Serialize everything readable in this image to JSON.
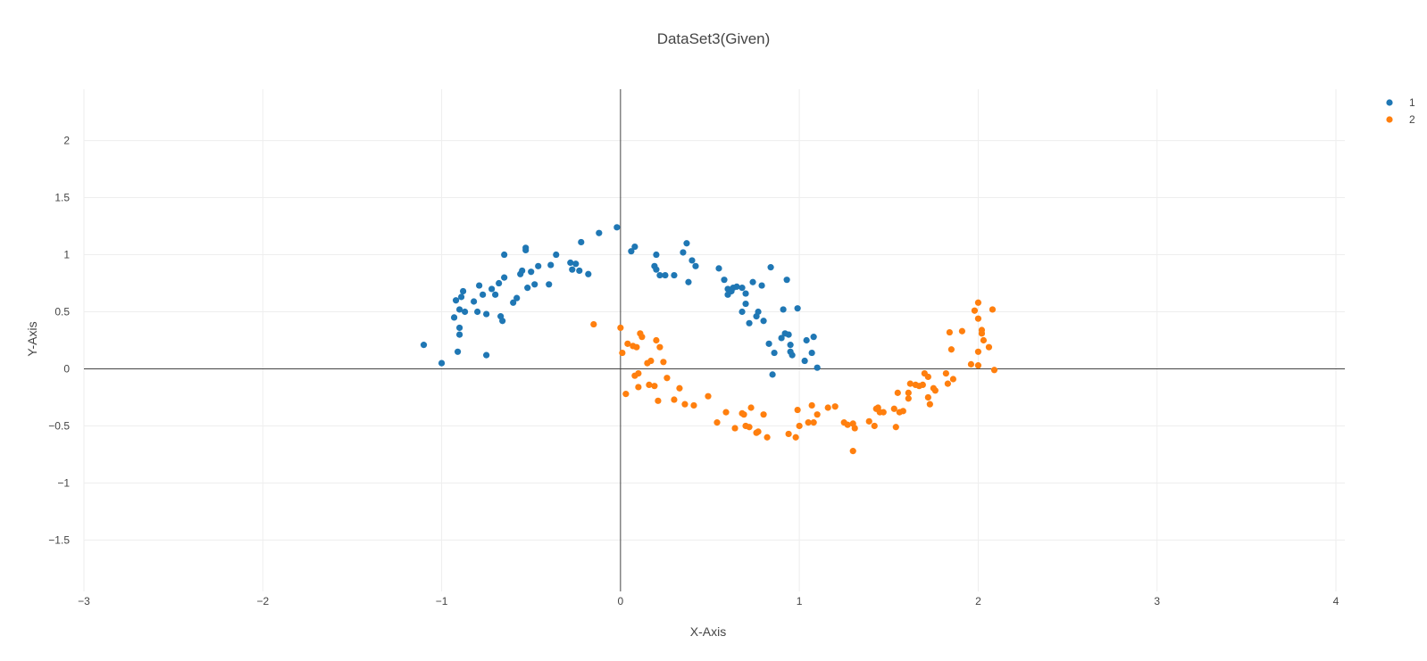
{
  "chart_data": {
    "type": "scatter",
    "title": "DataSet3(Given)",
    "xlabel": "X-Axis",
    "ylabel": "Y-Axis",
    "xlim": [
      -3,
      4.05
    ],
    "ylim": [
      -1.95,
      2.45
    ],
    "xticks": [
      -3,
      -2,
      -1,
      0,
      1,
      2,
      3,
      4
    ],
    "yticks": [
      -1.5,
      -1,
      -0.5,
      0,
      0.5,
      1,
      1.5,
      2
    ],
    "xtick_labels": [
      "−3",
      "−2",
      "−1",
      "0",
      "1",
      "2",
      "3",
      "4"
    ],
    "ytick_labels": [
      "−1.5",
      "−1",
      "−0.5",
      "0",
      "0.5",
      "1",
      "1.5",
      "2"
    ],
    "grid": true,
    "legend": "top-right",
    "series": [
      {
        "name": "1",
        "color": "#1f77b4",
        "points": [
          [
            -1.1,
            0.21
          ],
          [
            -1.0,
            0.05
          ],
          [
            -0.92,
            0.6
          ],
          [
            -0.91,
            0.15
          ],
          [
            -0.9,
            0.3
          ],
          [
            -0.9,
            0.36
          ],
          [
            -0.89,
            0.63
          ],
          [
            -0.88,
            0.68
          ],
          [
            -0.87,
            0.5
          ],
          [
            -0.93,
            0.45
          ],
          [
            -0.9,
            0.52
          ],
          [
            -0.82,
            0.59
          ],
          [
            -0.8,
            0.5
          ],
          [
            -0.79,
            0.73
          ],
          [
            -0.77,
            0.65
          ],
          [
            -0.75,
            0.12
          ],
          [
            -0.75,
            0.48
          ],
          [
            -0.72,
            0.7
          ],
          [
            -0.7,
            0.65
          ],
          [
            -0.68,
            0.75
          ],
          [
            -0.67,
            0.46
          ],
          [
            -0.66,
            0.42
          ],
          [
            -0.65,
            1.0
          ],
          [
            -0.65,
            0.8
          ],
          [
            -0.6,
            0.58
          ],
          [
            -0.58,
            0.62
          ],
          [
            -0.56,
            0.83
          ],
          [
            -0.55,
            0.86
          ],
          [
            -0.53,
            1.04
          ],
          [
            -0.53,
            1.06
          ],
          [
            -0.52,
            0.71
          ],
          [
            -0.5,
            0.85
          ],
          [
            -0.48,
            0.74
          ],
          [
            -0.46,
            0.9
          ],
          [
            -0.4,
            0.74
          ],
          [
            -0.39,
            0.91
          ],
          [
            -0.36,
            1.0
          ],
          [
            -0.28,
            0.93
          ],
          [
            -0.27,
            0.87
          ],
          [
            -0.25,
            0.92
          ],
          [
            -0.23,
            0.86
          ],
          [
            -0.22,
            1.11
          ],
          [
            -0.18,
            0.83
          ],
          [
            -0.12,
            1.19
          ],
          [
            -0.02,
            1.24
          ],
          [
            0.06,
            1.03
          ],
          [
            0.08,
            1.07
          ],
          [
            0.19,
            0.9
          ],
          [
            0.2,
            0.87
          ],
          [
            0.2,
            1.0
          ],
          [
            0.22,
            0.82
          ],
          [
            0.25,
            0.82
          ],
          [
            0.3,
            0.82
          ],
          [
            0.35,
            1.02
          ],
          [
            0.37,
            1.1
          ],
          [
            0.38,
            0.76
          ],
          [
            0.4,
            0.95
          ],
          [
            0.42,
            0.9
          ],
          [
            0.55,
            0.88
          ],
          [
            0.58,
            0.78
          ],
          [
            0.6,
            0.7
          ],
          [
            0.6,
            0.65
          ],
          [
            0.62,
            0.68
          ],
          [
            0.63,
            0.71
          ],
          [
            0.65,
            0.72
          ],
          [
            0.68,
            0.5
          ],
          [
            0.68,
            0.71
          ],
          [
            0.7,
            0.66
          ],
          [
            0.7,
            0.57
          ],
          [
            0.72,
            0.4
          ],
          [
            0.74,
            0.76
          ],
          [
            0.76,
            0.46
          ],
          [
            0.77,
            0.5
          ],
          [
            0.79,
            0.73
          ],
          [
            0.8,
            0.42
          ],
          [
            0.84,
            0.89
          ],
          [
            0.83,
            0.22
          ],
          [
            0.85,
            -0.05
          ],
          [
            0.86,
            0.14
          ],
          [
            0.9,
            0.27
          ],
          [
            0.91,
            0.52
          ],
          [
            0.92,
            0.31
          ],
          [
            0.93,
            0.78
          ],
          [
            0.94,
            0.3
          ],
          [
            0.95,
            0.15
          ],
          [
            0.95,
            0.21
          ],
          [
            0.96,
            0.12
          ],
          [
            0.99,
            0.53
          ],
          [
            1.03,
            0.07
          ],
          [
            1.04,
            0.25
          ],
          [
            1.07,
            0.14
          ],
          [
            1.08,
            0.28
          ],
          [
            1.1,
            0.01
          ]
        ]
      },
      {
        "name": "2",
        "color": "#ff7f0e",
        "points": [
          [
            -0.15,
            0.39
          ],
          [
            0.0,
            0.36
          ],
          [
            0.01,
            0.14
          ],
          [
            0.03,
            -0.22
          ],
          [
            0.04,
            0.22
          ],
          [
            0.07,
            0.2
          ],
          [
            0.08,
            -0.06
          ],
          [
            0.09,
            0.19
          ],
          [
            0.1,
            -0.04
          ],
          [
            0.1,
            -0.16
          ],
          [
            0.11,
            0.31
          ],
          [
            0.12,
            0.28
          ],
          [
            0.15,
            0.05
          ],
          [
            0.16,
            -0.14
          ],
          [
            0.17,
            0.07
          ],
          [
            0.19,
            -0.15
          ],
          [
            0.2,
            0.25
          ],
          [
            0.21,
            -0.28
          ],
          [
            0.22,
            0.19
          ],
          [
            0.24,
            0.06
          ],
          [
            0.26,
            -0.08
          ],
          [
            0.3,
            -0.27
          ],
          [
            0.33,
            -0.17
          ],
          [
            0.36,
            -0.31
          ],
          [
            0.41,
            -0.32
          ],
          [
            0.49,
            -0.24
          ],
          [
            0.54,
            -0.47
          ],
          [
            0.59,
            -0.38
          ],
          [
            0.64,
            -0.52
          ],
          [
            0.68,
            -0.39
          ],
          [
            0.69,
            -0.4
          ],
          [
            0.7,
            -0.5
          ],
          [
            0.72,
            -0.51
          ],
          [
            0.73,
            -0.34
          ],
          [
            0.76,
            -0.56
          ],
          [
            0.77,
            -0.55
          ],
          [
            0.8,
            -0.4
          ],
          [
            0.82,
            -0.6
          ],
          [
            0.94,
            -0.57
          ],
          [
            0.98,
            -0.6
          ],
          [
            0.99,
            -0.36
          ],
          [
            1.0,
            -0.5
          ],
          [
            1.05,
            -0.47
          ],
          [
            1.07,
            -0.32
          ],
          [
            1.08,
            -0.47
          ],
          [
            1.1,
            -0.4
          ],
          [
            1.16,
            -0.34
          ],
          [
            1.2,
            -0.33
          ],
          [
            1.25,
            -0.47
          ],
          [
            1.27,
            -0.49
          ],
          [
            1.3,
            -0.48
          ],
          [
            1.31,
            -0.52
          ],
          [
            1.3,
            -0.72
          ],
          [
            1.39,
            -0.46
          ],
          [
            1.42,
            -0.5
          ],
          [
            1.43,
            -0.35
          ],
          [
            1.44,
            -0.34
          ],
          [
            1.45,
            -0.38
          ],
          [
            1.47,
            -0.38
          ],
          [
            1.53,
            -0.35
          ],
          [
            1.54,
            -0.51
          ],
          [
            1.55,
            -0.21
          ],
          [
            1.56,
            -0.38
          ],
          [
            1.58,
            -0.37
          ],
          [
            1.61,
            -0.26
          ],
          [
            1.61,
            -0.21
          ],
          [
            1.62,
            -0.13
          ],
          [
            1.65,
            -0.14
          ],
          [
            1.67,
            -0.15
          ],
          [
            1.69,
            -0.14
          ],
          [
            1.7,
            -0.04
          ],
          [
            1.72,
            -0.25
          ],
          [
            1.72,
            -0.07
          ],
          [
            1.73,
            -0.31
          ],
          [
            1.75,
            -0.17
          ],
          [
            1.76,
            -0.19
          ],
          [
            1.82,
            -0.04
          ],
          [
            1.83,
            -0.13
          ],
          [
            1.84,
            0.32
          ],
          [
            1.85,
            0.17
          ],
          [
            1.86,
            -0.09
          ],
          [
            1.91,
            0.33
          ],
          [
            1.96,
            0.04
          ],
          [
            1.98,
            0.51
          ],
          [
            2.0,
            0.58
          ],
          [
            2.0,
            0.44
          ],
          [
            2.0,
            0.15
          ],
          [
            2.0,
            0.03
          ],
          [
            2.02,
            0.34
          ],
          [
            2.02,
            0.31
          ],
          [
            2.03,
            0.25
          ],
          [
            2.06,
            0.19
          ],
          [
            2.08,
            0.52
          ],
          [
            2.09,
            -0.01
          ]
        ]
      }
    ]
  }
}
